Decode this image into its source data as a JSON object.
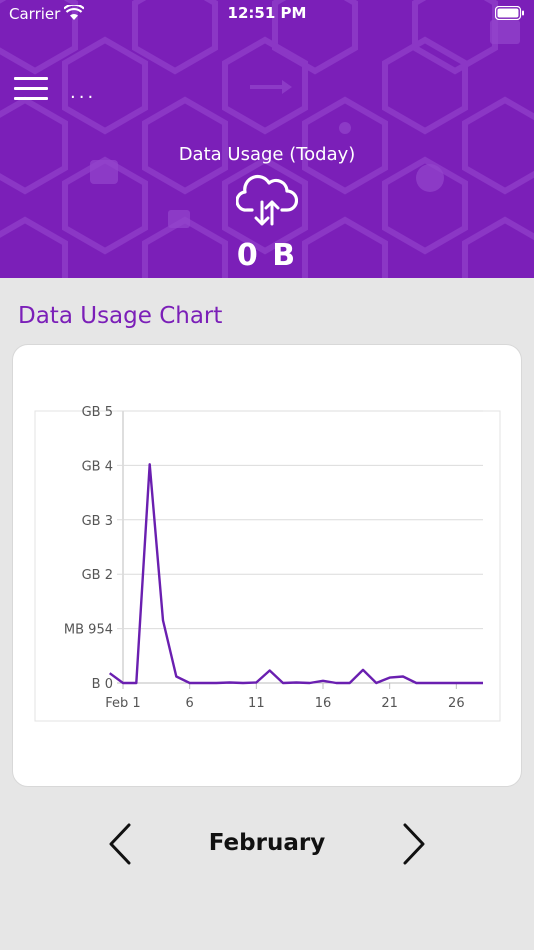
{
  "status_bar": {
    "carrier": "Carrier",
    "time": "12:51 PM"
  },
  "header": {
    "usage_title": "Data Usage (Today)",
    "usage_value": "0 B",
    "more_label": "..."
  },
  "section": {
    "title": "Data Usage Chart"
  },
  "chart_data": {
    "type": "line",
    "y_tick_labels": [
      "B 0",
      "MB 954",
      "GB 2",
      "GB 3",
      "GB 4",
      "GB 5"
    ],
    "y_ticks_gb": [
      0,
      1,
      2,
      3,
      4,
      5
    ],
    "x_tick_labels": [
      "Feb 1",
      "6",
      "11",
      "16",
      "21",
      "26"
    ],
    "x_ticks": [
      1,
      6,
      11,
      16,
      21,
      26
    ],
    "xlim": [
      1,
      28
    ],
    "ylim_gb": [
      0,
      5
    ],
    "grid": true,
    "color": "#6a1fb0",
    "series": [
      {
        "x": [
          0,
          1,
          2,
          3,
          4,
          5,
          6,
          7,
          8,
          9,
          10,
          11,
          12,
          13,
          14,
          15,
          16,
          17,
          18,
          19,
          20,
          21,
          22,
          23,
          24,
          25,
          26,
          27,
          28
        ],
        "y": [
          0.18,
          0.0,
          0.0,
          4.02,
          1.15,
          0.12,
          0.0,
          0.0,
          0.0,
          0.01,
          0.0,
          0.01,
          0.23,
          0.0,
          0.01,
          0.0,
          0.04,
          0.0,
          0.0,
          0.24,
          0.0,
          0.1,
          0.12,
          0.0,
          0.0,
          0.0,
          0.0,
          0.0,
          0.0
        ]
      }
    ]
  },
  "navigation": {
    "month": "February"
  },
  "colors": {
    "primary": "#7b1fb8",
    "background": "#e6e6e6",
    "card": "#ffffff"
  }
}
